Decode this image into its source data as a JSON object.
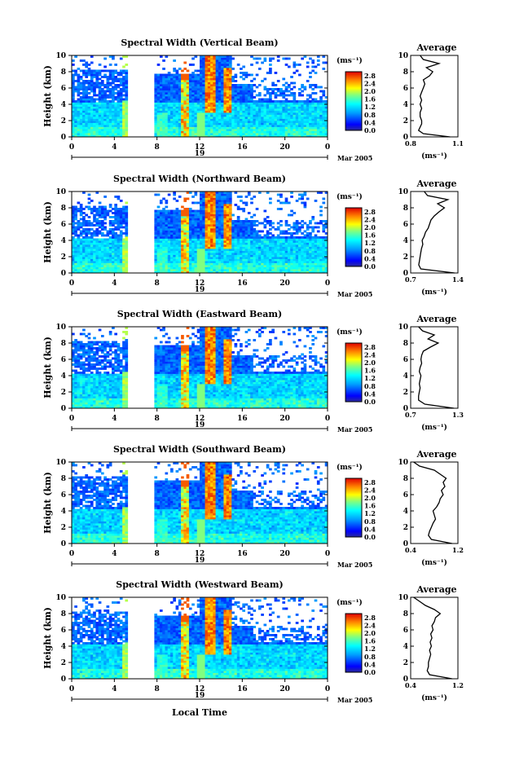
{
  "figure": {
    "xlabel": "Local Time",
    "date_label": "Mar 2005",
    "day_label": "19",
    "colorbar_units": "(ms⁻¹)",
    "avg_title": "Average",
    "avg_xlabel": "(ms⁻¹)"
  },
  "chart_data": [
    {
      "type": "heatmap",
      "title": "Spectral Width (Vertical Beam)",
      "xlabel": "Local Time",
      "ylabel": "Height (km)",
      "x_ticks": [
        "0",
        "4",
        "8",
        "12",
        "16",
        "20",
        "0"
      ],
      "y_ticks": [
        "0",
        "2",
        "4",
        "6",
        "8",
        "10"
      ],
      "xlim": [
        0,
        24
      ],
      "ylim": [
        0,
        10
      ],
      "colorbar": {
        "ticks": [
          "0.0",
          "0.4",
          "0.8",
          "1.2",
          "1.6",
          "2.0",
          "2.4",
          "2.8"
        ],
        "range": [
          0,
          3.0
        ]
      },
      "average": {
        "title": "Average",
        "xlabel": "(ms⁻¹)",
        "xlim": [
          0.8,
          1.1
        ],
        "x_ticks": [
          "0.8",
          "1.1"
        ],
        "profile": [
          [
            0,
            1.05
          ],
          [
            0.4,
            0.88
          ],
          [
            0.8,
            0.85
          ],
          [
            1.2,
            0.86
          ],
          [
            1.6,
            0.87
          ],
          [
            2,
            0.87
          ],
          [
            2.5,
            0.86
          ],
          [
            3,
            0.86
          ],
          [
            3.5,
            0.87
          ],
          [
            4,
            0.86
          ],
          [
            4.5,
            0.87
          ],
          [
            5,
            0.86
          ],
          [
            5.5,
            0.87
          ],
          [
            6,
            0.88
          ],
          [
            6.5,
            0.89
          ],
          [
            7,
            0.88
          ],
          [
            7.5,
            0.92
          ],
          [
            8,
            0.94
          ],
          [
            8.5,
            0.9
          ],
          [
            9,
            0.98
          ],
          [
            9.5,
            0.88
          ],
          [
            10,
            0.86
          ]
        ]
      }
    },
    {
      "type": "heatmap",
      "title": "Spectral Width (Northward Beam)",
      "xlabel": "Local Time",
      "ylabel": "Height (km)",
      "x_ticks": [
        "0",
        "4",
        "8",
        "12",
        "16",
        "20",
        "0"
      ],
      "y_ticks": [
        "0",
        "2",
        "4",
        "6",
        "8",
        "10"
      ],
      "xlim": [
        0,
        24
      ],
      "ylim": [
        0,
        10
      ],
      "colorbar": {
        "ticks": [
          "0.0",
          "0.4",
          "0.8",
          "1.2",
          "1.6",
          "2.0",
          "2.4",
          "2.8"
        ],
        "range": [
          0,
          3.0
        ]
      },
      "average": {
        "title": "Average",
        "xlabel": "(ms⁻¹)",
        "xlim": [
          0.7,
          1.4
        ],
        "x_ticks": [
          "0.7",
          "1.4"
        ],
        "profile": [
          [
            0,
            1.35
          ],
          [
            0.5,
            0.85
          ],
          [
            1,
            0.82
          ],
          [
            1.5,
            0.83
          ],
          [
            2,
            0.84
          ],
          [
            2.5,
            0.85
          ],
          [
            3,
            0.86
          ],
          [
            3.5,
            0.88
          ],
          [
            4,
            0.87
          ],
          [
            4.5,
            0.9
          ],
          [
            5,
            0.92
          ],
          [
            5.5,
            0.96
          ],
          [
            6,
            0.98
          ],
          [
            6.5,
            1.0
          ],
          [
            7,
            1.05
          ],
          [
            7.5,
            1.12
          ],
          [
            8,
            1.2
          ],
          [
            8.5,
            1.1
          ],
          [
            9,
            1.25
          ],
          [
            9.5,
            0.95
          ],
          [
            10,
            0.9
          ]
        ]
      }
    },
    {
      "type": "heatmap",
      "title": "Spectral Width (Eastward Beam)",
      "xlabel": "Local Time",
      "ylabel": "Height (km)",
      "x_ticks": [
        "0",
        "4",
        "8",
        "12",
        "16",
        "20",
        "0"
      ],
      "y_ticks": [
        "0",
        "2",
        "4",
        "6",
        "8",
        "10"
      ],
      "xlim": [
        0,
        24
      ],
      "ylim": [
        0,
        10
      ],
      "colorbar": {
        "ticks": [
          "0.0",
          "0.4",
          "0.8",
          "1.2",
          "1.6",
          "2.0",
          "2.4",
          "2.8"
        ],
        "range": [
          0,
          3.0
        ]
      },
      "average": {
        "title": "Average",
        "xlabel": "(ms⁻¹)",
        "xlim": [
          0.7,
          1.3
        ],
        "x_ticks": [
          "0.7",
          "1.3"
        ],
        "profile": [
          [
            0,
            1.25
          ],
          [
            0.5,
            0.88
          ],
          [
            1,
            0.8
          ],
          [
            1.5,
            0.8
          ],
          [
            2,
            0.81
          ],
          [
            2.5,
            0.82
          ],
          [
            3,
            0.81
          ],
          [
            3.5,
            0.82
          ],
          [
            4,
            0.83
          ],
          [
            4.5,
            0.81
          ],
          [
            5,
            0.82
          ],
          [
            5.5,
            0.84
          ],
          [
            6,
            0.83
          ],
          [
            6.5,
            0.84
          ],
          [
            7,
            0.86
          ],
          [
            7.5,
            0.95
          ],
          [
            8,
            1.05
          ],
          [
            8.5,
            0.92
          ],
          [
            9,
            1.0
          ],
          [
            9.5,
            0.85
          ],
          [
            10,
            0.8
          ]
        ]
      }
    },
    {
      "type": "heatmap",
      "title": "Spectral Width (Southward Beam)",
      "xlabel": "Local Time",
      "ylabel": "Height (km)",
      "x_ticks": [
        "0",
        "4",
        "8",
        "12",
        "16",
        "20",
        "0"
      ],
      "y_ticks": [
        "0",
        "2",
        "4",
        "6",
        "8",
        "10"
      ],
      "xlim": [
        0,
        24
      ],
      "ylim": [
        0,
        10
      ],
      "colorbar": {
        "ticks": [
          "0.0",
          "0.4",
          "0.8",
          "1.2",
          "1.6",
          "2.0",
          "2.4",
          "2.8"
        ],
        "range": [
          0,
          3.0
        ]
      },
      "average": {
        "title": "Average",
        "xlabel": "(ms⁻¹)",
        "xlim": [
          0.4,
          1.2
        ],
        "x_ticks": [
          "0.4",
          "1.2"
        ],
        "profile": [
          [
            0,
            1.1
          ],
          [
            0.5,
            0.75
          ],
          [
            1,
            0.7
          ],
          [
            1.5,
            0.72
          ],
          [
            2,
            0.75
          ],
          [
            2.5,
            0.78
          ],
          [
            3,
            0.82
          ],
          [
            3.5,
            0.8
          ],
          [
            4,
            0.78
          ],
          [
            4.5,
            0.84
          ],
          [
            5,
            0.88
          ],
          [
            5.5,
            0.9
          ],
          [
            6,
            0.95
          ],
          [
            6.5,
            0.92
          ],
          [
            7,
            0.98
          ],
          [
            7.5,
            0.95
          ],
          [
            8,
            1.0
          ],
          [
            8.5,
            0.9
          ],
          [
            9,
            0.8
          ],
          [
            9.5,
            0.55
          ],
          [
            10,
            0.45
          ]
        ]
      }
    },
    {
      "type": "heatmap",
      "title": "Spectral Width (Westward Beam)",
      "xlabel": "Local Time",
      "ylabel": "Height (km)",
      "x_ticks": [
        "0",
        "4",
        "8",
        "12",
        "16",
        "20",
        "0"
      ],
      "y_ticks": [
        "0",
        "2",
        "4",
        "6",
        "8",
        "10"
      ],
      "xlim": [
        0,
        24
      ],
      "ylim": [
        0,
        10
      ],
      "colorbar": {
        "ticks": [
          "0.0",
          "0.4",
          "0.8",
          "1.2",
          "1.6",
          "2.0",
          "2.4",
          "2.8"
        ],
        "range": [
          0,
          3.0
        ]
      },
      "average": {
        "title": "Average",
        "xlabel": "(ms⁻¹)",
        "xlim": [
          0.4,
          1.2
        ],
        "x_ticks": [
          "0.4",
          "1.2"
        ],
        "profile": [
          [
            0,
            1.1
          ],
          [
            0.5,
            0.72
          ],
          [
            1,
            0.68
          ],
          [
            1.5,
            0.7
          ],
          [
            2,
            0.7
          ],
          [
            2.5,
            0.72
          ],
          [
            3,
            0.74
          ],
          [
            3.5,
            0.72
          ],
          [
            4,
            0.75
          ],
          [
            4.5,
            0.73
          ],
          [
            5,
            0.76
          ],
          [
            5.5,
            0.74
          ],
          [
            6,
            0.78
          ],
          [
            6.5,
            0.76
          ],
          [
            7,
            0.8
          ],
          [
            7.5,
            0.82
          ],
          [
            8,
            0.9
          ],
          [
            8.5,
            0.8
          ],
          [
            9,
            0.65
          ],
          [
            9.5,
            0.55
          ],
          [
            10,
            0.45
          ]
        ]
      }
    }
  ]
}
